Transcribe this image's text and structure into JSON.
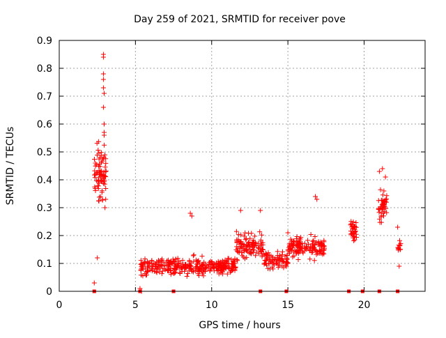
{
  "chart_data": {
    "type": "scatter",
    "title": "Day 259 of 2021, SRMTID for receiver pove",
    "xlabel": "GPS time / hours",
    "ylabel": "SRMTID / TECUs",
    "xlim": [
      0,
      24
    ],
    "ylim": [
      0,
      0.9
    ],
    "x_ticks": [
      0,
      5,
      10,
      15,
      20
    ],
    "y_ticks": [
      0,
      0.1,
      0.2,
      0.3,
      0.4,
      0.5,
      0.6,
      0.7,
      0.8,
      0.9
    ],
    "grid": true,
    "marker": "+",
    "color": "#ff0000",
    "clusters": [
      {
        "x": [
          2.3,
          3.1
        ],
        "y_mid": 0.42,
        "y_spread": 0.14,
        "n": 80
      },
      {
        "x": [
          5.3,
          9.6
        ],
        "y_mid": 0.09,
        "y_spread": 0.045,
        "n": 230
      },
      {
        "x": [
          9.6,
          11.6
        ],
        "y_mid": 0.09,
        "y_spread": 0.04,
        "n": 120
      },
      {
        "x": [
          11.6,
          13.4
        ],
        "y_mid": 0.16,
        "y_spread": 0.06,
        "n": 110
      },
      {
        "x": [
          13.4,
          15.0
        ],
        "y_mid": 0.11,
        "y_spread": 0.05,
        "n": 80
      },
      {
        "x": [
          15.0,
          17.4
        ],
        "y_mid": 0.16,
        "y_spread": 0.055,
        "n": 140
      },
      {
        "x": [
          19.1,
          19.5
        ],
        "y_mid": 0.22,
        "y_spread": 0.05,
        "n": 35
      },
      {
        "x": [
          20.9,
          21.5
        ],
        "y_mid": 0.3,
        "y_spread": 0.07,
        "n": 45
      },
      {
        "x": [
          22.2,
          22.4
        ],
        "y_mid": 0.16,
        "y_spread": 0.04,
        "n": 12
      }
    ],
    "points": [
      [
        2.9,
        0.85
      ],
      [
        2.9,
        0.84
      ],
      [
        2.9,
        0.78
      ],
      [
        2.9,
        0.76
      ],
      [
        2.9,
        0.73
      ],
      [
        2.95,
        0.71
      ],
      [
        2.9,
        0.66
      ],
      [
        2.95,
        0.6
      ],
      [
        2.95,
        0.57
      ],
      [
        2.95,
        0.56
      ],
      [
        2.3,
        0.03
      ],
      [
        2.5,
        0.12
      ],
      [
        3.0,
        0.3
      ],
      [
        3.05,
        0.33
      ],
      [
        8.6,
        0.28
      ],
      [
        8.7,
        0.27
      ],
      [
        11.9,
        0.29
      ],
      [
        13.2,
        0.29
      ],
      [
        16.8,
        0.34
      ],
      [
        16.9,
        0.33
      ],
      [
        21.2,
        0.44
      ],
      [
        21.0,
        0.43
      ],
      [
        21.4,
        0.41
      ],
      [
        21.3,
        0.36
      ],
      [
        22.3,
        0.09
      ],
      [
        22.2,
        0.23
      ],
      [
        15.0,
        0.21
      ],
      [
        5.3,
        0.01
      ],
      [
        5.4,
        0.0
      ]
    ],
    "baseline_markers_x": [
      2.3,
      5.3,
      7.5,
      13.2,
      14.9,
      19.0,
      19.9,
      21.0,
      22.2
    ]
  }
}
